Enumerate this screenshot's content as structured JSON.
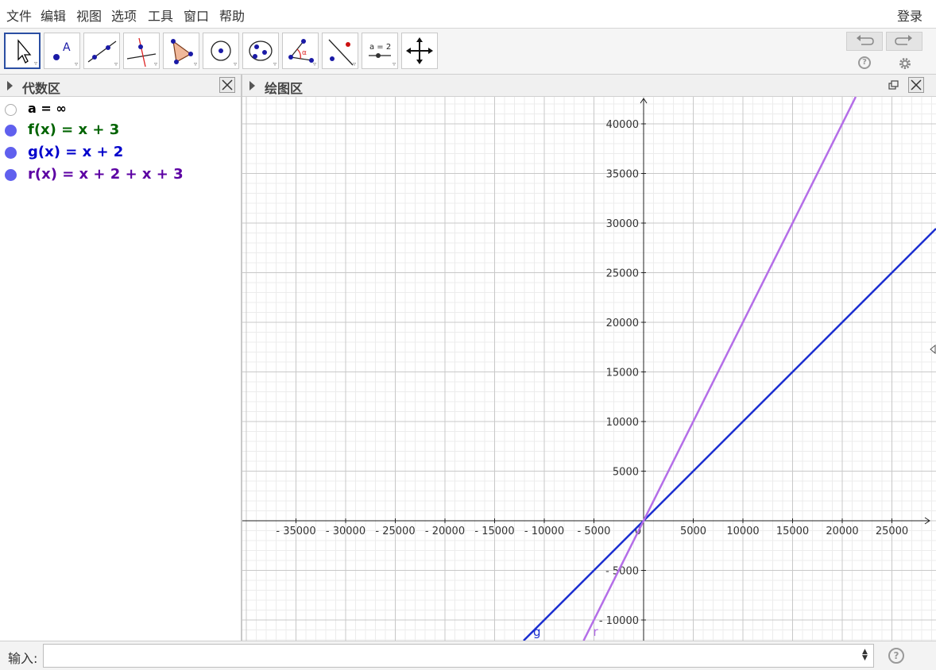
{
  "menu": {
    "items": [
      "文件",
      "编辑",
      "视图",
      "选项",
      "工具",
      "窗口",
      "帮助"
    ],
    "login": "登录"
  },
  "toolbar": {
    "tools": [
      "move-tool",
      "point-tool",
      "line-tool",
      "perpendicular-line-tool",
      "polygon-tool",
      "circle-tool",
      "conic-tool",
      "angle-tool",
      "reflect-tool",
      "slider-tool",
      "move-graphics-view-tool"
    ],
    "slider_label": "a = 2",
    "angle_symbol": "α"
  },
  "algebra": {
    "title": "代数区",
    "rows": [
      {
        "text": "a = ∞",
        "color": "#000000",
        "visible": false
      },
      {
        "text": "f(x)  =  x + 3",
        "color": "#006400",
        "visible": true
      },
      {
        "text": "g(x)  =  x + 2",
        "color": "#0000cc",
        "visible": true
      },
      {
        "text": "r(x)  =  x + 2 + x + 3",
        "color": "#5c00a3",
        "visible": true
      }
    ]
  },
  "graphics": {
    "title": "绘图区",
    "x_tick_labels": [
      "- 35000",
      "- 30000",
      "- 25000",
      "- 20000",
      "- 15000",
      "- 10000",
      "- 5000",
      "0",
      "5000",
      "10000",
      "15000",
      "20000",
      "25000"
    ],
    "y_tick_labels": [
      "40000",
      "35000",
      "30000",
      "25000",
      "20000",
      "15000",
      "10000",
      "5000",
      "- 5000",
      "- 10000"
    ],
    "curves": [
      {
        "label": "g",
        "color": "#1c2fd0",
        "slope": 1,
        "intercept": 2
      },
      {
        "label": "r",
        "color": "#b46ee8",
        "slope": 2,
        "intercept": 5
      }
    ]
  },
  "input": {
    "label": "输入:",
    "value": ""
  }
}
